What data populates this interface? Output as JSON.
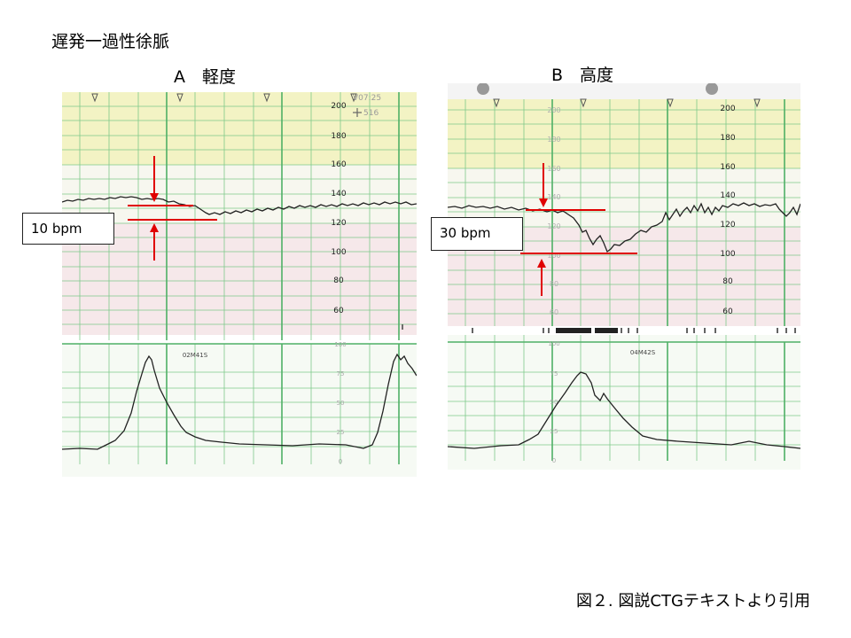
{
  "slide": {
    "title": "遅発一過性徐脈",
    "caption": "図２. 図説CTGテキストより引用"
  },
  "panels": [
    {
      "id": "A",
      "title": "A　軽度",
      "callout": "10 bpm",
      "fhr_scale_labels": [
        "200",
        "180",
        "160",
        "140",
        "120",
        "100",
        "80",
        "60"
      ],
      "uc_scale_labels": [
        "100",
        "75",
        "50",
        "25",
        "0"
      ],
      "header_text": [
        "V07:25",
        "516"
      ],
      "time_label": "02M41S",
      "colors": {
        "band_top": "#f3f3c4",
        "band_mid": "#f7f7ef",
        "band_low": "#f6e8ea",
        "grid": "#7ec98a",
        "trace": "#222222",
        "arrow": "#e00000"
      }
    },
    {
      "id": "B",
      "title": "B　高度",
      "callout": "30 bpm",
      "fhr_scale_labels": [
        "200",
        "180",
        "160",
        "140",
        "120",
        "100",
        "80",
        "60"
      ],
      "uc_scale_labels": [
        "100",
        "75",
        "50",
        "25",
        "0"
      ],
      "time_label": "04M42S",
      "colors": {
        "band_top": "#f3f3c4",
        "band_mid": "#f7f7ef",
        "band_low": "#f6e8ea",
        "grid": "#7ec98a",
        "trace": "#222222",
        "arrow": "#e00000"
      }
    }
  ]
}
